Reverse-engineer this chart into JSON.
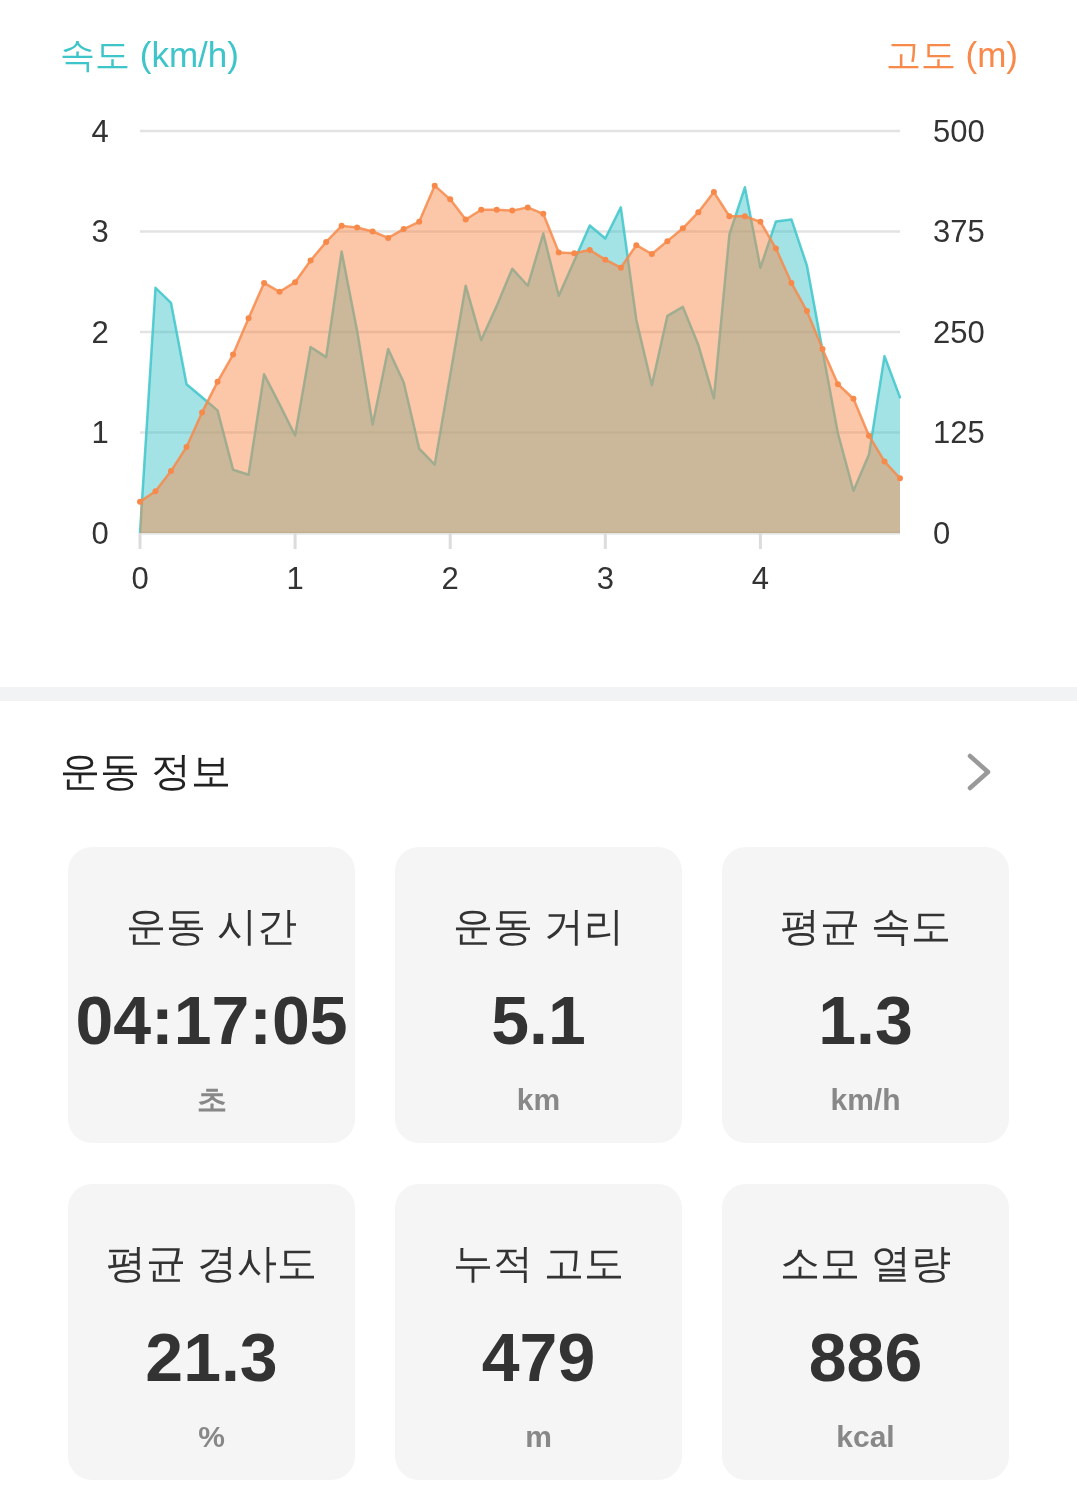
{
  "chart_data": [
    {
      "type": "area",
      "ylabel": "속도 (km/h)",
      "y2label": "고도 (m)",
      "x": [
        0,
        0.1,
        0.2,
        0.3,
        0.4,
        0.5,
        0.6,
        0.7,
        0.8,
        0.9,
        1,
        1.1,
        1.2,
        1.3,
        1.4,
        1.5,
        1.6,
        1.7,
        1.8,
        1.9,
        2,
        2.1,
        2.2,
        2.3,
        2.4,
        2.5,
        2.6,
        2.7,
        2.8,
        2.9,
        3,
        3.1,
        3.2,
        3.3,
        3.4,
        3.5,
        3.6,
        3.7,
        3.8,
        3.9,
        4,
        4.1,
        4.2,
        4.3,
        4.4,
        4.5,
        4.6,
        4.7,
        4.8,
        4.9
      ],
      "xlim": [
        0,
        4.9
      ],
      "xticks": [
        0,
        1,
        2,
        3,
        4
      ],
      "ylim": [
        0,
        4
      ],
      "yticks": [
        0,
        1,
        2,
        3,
        4
      ],
      "y2lim": [
        0,
        500
      ],
      "y2ticks": [
        0,
        125,
        250,
        375,
        500
      ],
      "grid": "y",
      "series": [
        {
          "color": "#3ec5ca",
          "values": [
            0,
            2.44,
            2.29,
            1.48,
            1.35,
            1.22,
            0.63,
            0.58,
            1.58,
            1.28,
            0.97,
            1.85,
            1.75,
            2.8,
            2.01,
            1.08,
            1.83,
            1.5,
            0.84,
            0.68,
            1.57,
            2.46,
            1.92,
            2.26,
            2.63,
            2.46,
            2.98,
            2.36,
            2.71,
            3.06,
            2.93,
            3.24,
            2.12,
            1.47,
            2.16,
            2.25,
            1.87,
            1.34,
            2.97,
            3.44,
            2.64,
            3.1,
            3.12,
            2.66,
            1.82,
            0.99,
            0.42,
            0.78,
            1.76,
            1.35
          ]
        },
        {
          "color": "#f7894a",
          "axis": "y2",
          "marker": "circle",
          "values": [
            39,
            52,
            77,
            107,
            150,
            188,
            222,
            267,
            311,
            300,
            312,
            339,
            362,
            382,
            380,
            375,
            367,
            378,
            387,
            432,
            415,
            390,
            402,
            402,
            401,
            405,
            397,
            349,
            348,
            352,
            340,
            330,
            358,
            347,
            363,
            379,
            399,
            424,
            394,
            394,
            387,
            354,
            311,
            276,
            229,
            185,
            167,
            121,
            89,
            68
          ]
        }
      ]
    },
    {
      "type": "other",
      "title": "운동 정보",
      "annotations": [
        "운동 시간",
        "04:17:05",
        "초",
        "운동 거리",
        "5.1",
        "km",
        "평균 속도",
        "1.3",
        "km/h",
        "평균 경사도",
        "21.3",
        "%",
        "누적 고도",
        "479",
        "m",
        "소모 열량",
        "886",
        "kcal"
      ]
    }
  ]
}
